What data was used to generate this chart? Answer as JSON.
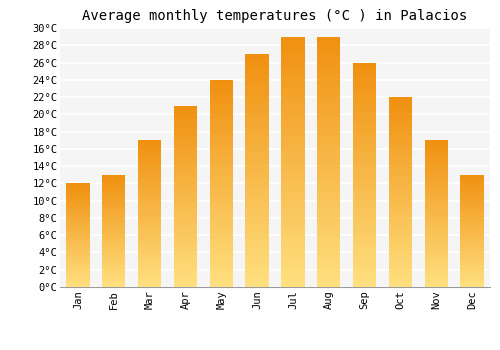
{
  "title": "Average monthly temperatures (°C ) in Palacios",
  "months": [
    "Jan",
    "Feb",
    "Mar",
    "Apr",
    "May",
    "Jun",
    "Jul",
    "Aug",
    "Sep",
    "Oct",
    "Nov",
    "Dec"
  ],
  "values": [
    12,
    13,
    17,
    21,
    24,
    27,
    29,
    29,
    26,
    22,
    17,
    13
  ],
  "bar_color_top": "#F5A623",
  "bar_color_bottom": "#FFD966",
  "ylim": [
    0,
    30
  ],
  "yticks": [
    0,
    2,
    4,
    6,
    8,
    10,
    12,
    14,
    16,
    18,
    20,
    22,
    24,
    26,
    28,
    30
  ],
  "ytick_labels": [
    "0°C",
    "2°C",
    "4°C",
    "6°C",
    "8°C",
    "10°C",
    "12°C",
    "14°C",
    "16°C",
    "18°C",
    "20°C",
    "22°C",
    "24°C",
    "26°C",
    "28°C",
    "30°C"
  ],
  "background_color": "#ffffff",
  "plot_bg_color": "#f5f5f5",
  "grid_color": "#ffffff",
  "title_fontsize": 10,
  "tick_fontsize": 7.5,
  "bar_width": 0.65
}
